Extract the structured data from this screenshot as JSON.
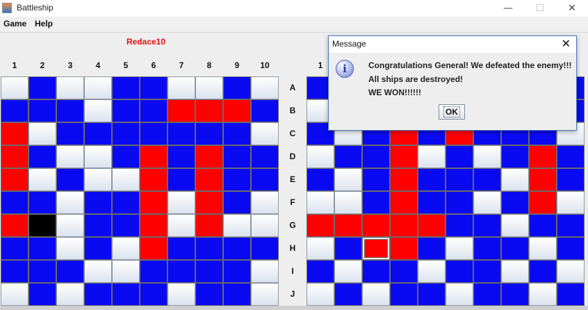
{
  "window": {
    "title": "Battleship",
    "icon": "java-cup-icon",
    "controls": {
      "minimize": "—",
      "maximize": "☐",
      "close": "✕"
    }
  },
  "menu": [
    "Game",
    "Help"
  ],
  "player": {
    "name": "Redace10",
    "color": "#e01010"
  },
  "columns": [
    "1",
    "2",
    "3",
    "4",
    "5",
    "6",
    "7",
    "8",
    "9",
    "10"
  ],
  "rows": [
    "A",
    "B",
    "C",
    "D",
    "E",
    "F",
    "G",
    "H",
    "I",
    "J"
  ],
  "cell_legend": {
    "w": "unopened",
    "b": "miss",
    "r": "hit",
    "k": "sunk"
  },
  "colors": {
    "miss": "#0a0af2",
    "hit": "#ff0000",
    "sunk": "#000000"
  },
  "left_board": [
    "wbwwbbwwbw",
    "bbbwbbrrrb",
    "rwbbbbbbbw",
    "rbwwbrbrbb",
    "rwbwwrbrbb",
    "bbwbbrwrbw",
    "rkwbbrwrww",
    "bbwbwrbbbb",
    "bbbwwbbbbw",
    "wbwbbbwbbw"
  ],
  "right_board": [
    "bbbbbbbbbb",
    "wbbbbbbbbb",
    "bwbrbrbbbw",
    "wbbrwbwbrb",
    "bwbrbbbwrb",
    "wwbrbbwbrw",
    "rrrrrbbwbb",
    "wbrrbwbbwb",
    "bwbbwbbwbw",
    "wbwbbwbbwb"
  ],
  "right_selected": {
    "row": 7,
    "col": 2
  },
  "dialog": {
    "title": "Message",
    "close": "✕",
    "icon": "info-icon",
    "icon_glyph": "i",
    "lines": [
      "Congratulations General! We defeated the enemy!!!",
      "All ships are destroyed!",
      "WE WON!!!!!!"
    ],
    "ok_label": "OK"
  }
}
